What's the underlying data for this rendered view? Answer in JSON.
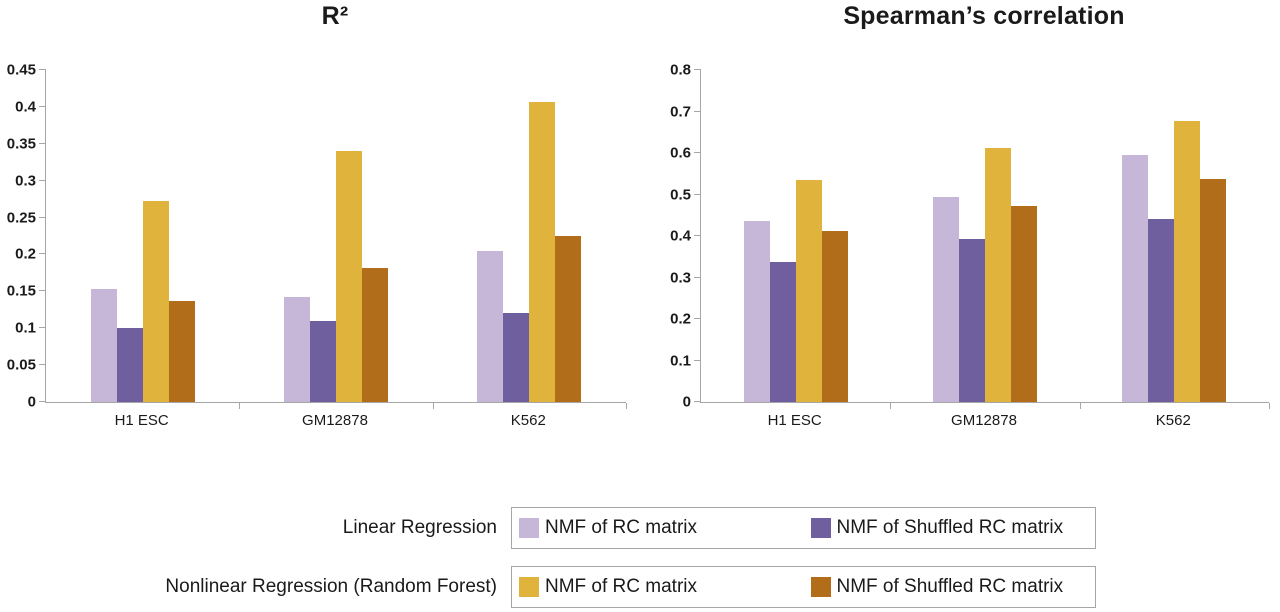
{
  "page": {
    "background": "#ffffff"
  },
  "chart_data": [
    {
      "type": "bar",
      "title": "R²",
      "categories": [
        "H1 ESC",
        "GM12878",
        "K562"
      ],
      "series": [
        {
          "name": "Linear Regression – NMF of RC matrix",
          "color": "#c6b6d8",
          "values": [
            0.153,
            0.143,
            0.205
          ]
        },
        {
          "name": "Linear Regression – NMF of Shuffled RC matrix",
          "color": "#6f5f9e",
          "values": [
            0.1,
            0.11,
            0.12
          ]
        },
        {
          "name": "Nonlinear Regression (Random Forest) – NMF of RC matrix",
          "color": "#e0b33c",
          "values": [
            0.273,
            0.34,
            0.407
          ]
        },
        {
          "name": "Nonlinear Regression (Random Forest) – NMF of Shuffled RC matrix",
          "color": "#b26d1a",
          "values": [
            0.137,
            0.182,
            0.225
          ]
        }
      ],
      "ylim": [
        0,
        0.45
      ],
      "yticks": [
        "0",
        "0.05",
        "0.1",
        "0.15",
        "0.2",
        "0.25",
        "0.3",
        "0.35",
        "0.4",
        "0.45"
      ],
      "xlabel": "",
      "ylabel": "",
      "grid": false,
      "legend_position": "bottom-shared"
    },
    {
      "type": "bar",
      "title": "Spearman’s correlation",
      "categories": [
        "H1 ESC",
        "GM12878",
        "K562"
      ],
      "series": [
        {
          "name": "Linear Regression – NMF of RC matrix",
          "color": "#c6b6d8",
          "values": [
            0.437,
            0.495,
            0.595
          ]
        },
        {
          "name": "Linear Regression – NMF of Shuffled RC matrix",
          "color": "#6f5f9e",
          "values": [
            0.338,
            0.392,
            0.441
          ]
        },
        {
          "name": "Nonlinear Regression (Random Forest) – NMF of RC matrix",
          "color": "#e0b33c",
          "values": [
            0.535,
            0.613,
            0.676
          ]
        },
        {
          "name": "Nonlinear Regression (Random Forest) – NMF of Shuffled RC matrix",
          "color": "#b26d1a",
          "values": [
            0.413,
            0.472,
            0.537
          ]
        }
      ],
      "ylim": [
        0,
        0.8
      ],
      "yticks": [
        "0",
        "0.1",
        "0.2",
        "0.3",
        "0.4",
        "0.5",
        "0.6",
        "0.7",
        "0.8"
      ],
      "xlabel": "",
      "ylabel": "",
      "grid": false,
      "legend_position": "bottom-shared"
    }
  ],
  "legend": {
    "rows": [
      {
        "label": "Linear Regression",
        "items": [
          {
            "color": "#c6b6d8",
            "label": "NMF of RC matrix"
          },
          {
            "color": "#6f5f9e",
            "label": "NMF of Shuffled RC matrix"
          }
        ]
      },
      {
        "label": "Nonlinear Regression (Random Forest)",
        "items": [
          {
            "color": "#e0b33c",
            "label": "NMF of RC matrix"
          },
          {
            "color": "#b26d1a",
            "label": "NMF of Shuffled RC matrix"
          }
        ]
      }
    ]
  }
}
